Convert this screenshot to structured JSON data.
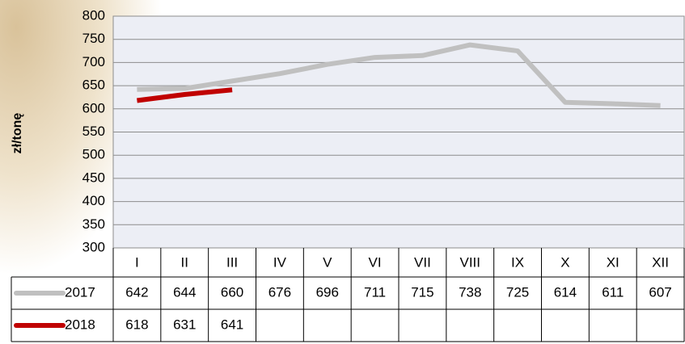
{
  "chart_data": {
    "type": "line",
    "y_label": "zł/tonę",
    "categories": [
      "I",
      "II",
      "III",
      "IV",
      "V",
      "VI",
      "VII",
      "VIII",
      "IX",
      "X",
      "XI",
      "XII"
    ],
    "series": [
      {
        "name": "2017",
        "color": "#c0c0c0",
        "values": [
          642,
          644,
          660,
          676,
          696,
          711,
          715,
          738,
          725,
          614,
          611,
          607
        ]
      },
      {
        "name": "2018",
        "color": "#c00000",
        "values": [
          618,
          631,
          641,
          null,
          null,
          null,
          null,
          null,
          null,
          null,
          null,
          null
        ]
      }
    ],
    "ylim": [
      300,
      800
    ],
    "yticks": [
      300,
      350,
      400,
      450,
      500,
      550,
      600,
      650,
      700,
      750,
      800
    ],
    "grid": true
  }
}
